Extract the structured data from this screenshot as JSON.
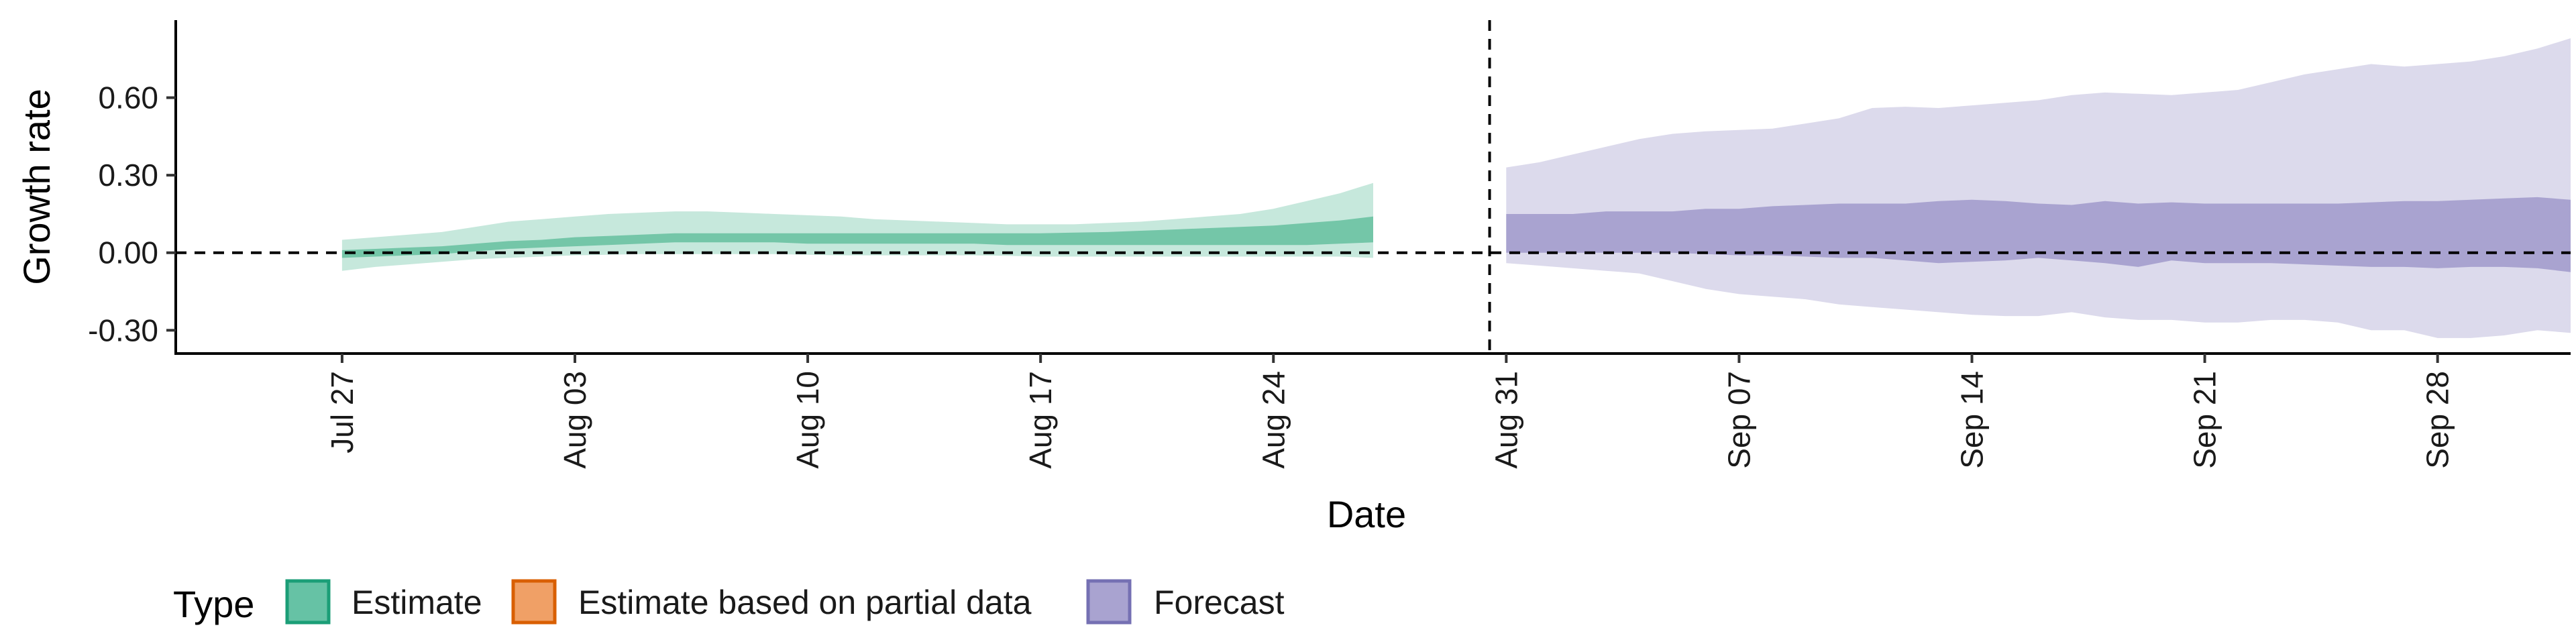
{
  "chart_data": {
    "type": "area",
    "xlabel": "Date",
    "ylabel": "Growth rate",
    "ylim": [
      -0.39,
      0.9
    ],
    "xlim": [
      "2020-07-22",
      "2020-10-02"
    ],
    "y_ticks": [
      -0.3,
      0.0,
      0.3,
      0.6
    ],
    "y_tick_labels": [
      "-0.30",
      "0.00",
      "0.30",
      "0.60"
    ],
    "x_ticks": [
      "2020-07-27",
      "2020-08-03",
      "2020-08-10",
      "2020-08-17",
      "2020-08-24",
      "2020-08-31",
      "2020-09-07",
      "2020-09-14",
      "2020-09-21",
      "2020-09-28"
    ],
    "x_tick_labels": [
      "Jul 27",
      "Aug 03",
      "Aug 10",
      "Aug 17",
      "Aug 24",
      "Aug 31",
      "Sep 07",
      "Sep 14",
      "Sep 21",
      "Sep 28"
    ],
    "reference_lines": {
      "horizontal_y": 0,
      "vertical_date": "2020-08-30"
    },
    "grid": false,
    "legend": {
      "title": "Type",
      "position": "bottom-left",
      "entries": [
        {
          "label": "Estimate",
          "fill": "#66c2a5",
          "stroke": "#1b9e77"
        },
        {
          "label": "Estimate based on partial data",
          "fill": "#f0a066",
          "stroke": "#d95f02"
        },
        {
          "label": "Forecast",
          "fill": "#a9a3d0",
          "stroke": "#7570b3"
        }
      ]
    },
    "series": [
      {
        "name": "Estimate",
        "color": "#1b9e77",
        "start_date": "2020-07-27",
        "outer_upper": [
          0.05,
          0.06,
          0.07,
          0.08,
          0.1,
          0.12,
          0.13,
          0.14,
          0.15,
          0.155,
          0.16,
          0.16,
          0.155,
          0.15,
          0.145,
          0.14,
          0.13,
          0.125,
          0.12,
          0.115,
          0.11,
          0.11,
          0.11,
          0.115,
          0.12,
          0.13,
          0.14,
          0.15,
          0.17,
          0.2,
          0.23,
          0.27
        ],
        "inner_upper": [
          0.01,
          0.015,
          0.02,
          0.025,
          0.035,
          0.045,
          0.05,
          0.06,
          0.065,
          0.07,
          0.075,
          0.075,
          0.075,
          0.075,
          0.075,
          0.075,
          0.075,
          0.075,
          0.075,
          0.075,
          0.075,
          0.075,
          0.078,
          0.08,
          0.085,
          0.09,
          0.095,
          0.1,
          0.105,
          0.115,
          0.125,
          0.14
        ],
        "inner_lower": [
          -0.02,
          -0.015,
          -0.01,
          -0.005,
          0.005,
          0.015,
          0.02,
          0.025,
          0.03,
          0.035,
          0.04,
          0.04,
          0.04,
          0.04,
          0.035,
          0.035,
          0.035,
          0.035,
          0.035,
          0.035,
          0.03,
          0.03,
          0.03,
          0.03,
          0.03,
          0.03,
          0.03,
          0.03,
          0.03,
          0.03,
          0.035,
          0.04
        ],
        "outer_lower": [
          -0.07,
          -0.055,
          -0.045,
          -0.035,
          -0.025,
          -0.02,
          -0.015,
          -0.01,
          -0.008,
          -0.005,
          -0.005,
          -0.005,
          -0.005,
          -0.005,
          -0.008,
          -0.01,
          -0.01,
          -0.01,
          -0.01,
          -0.01,
          -0.012,
          -0.015,
          -0.015,
          -0.015,
          -0.015,
          -0.015,
          -0.015,
          -0.015,
          -0.015,
          -0.015,
          -0.015,
          -0.02
        ]
      },
      {
        "name": "Forecast",
        "color": "#7570b3",
        "start_date": "2020-08-31",
        "outer_upper": [
          0.33,
          0.35,
          0.38,
          0.41,
          0.44,
          0.46,
          0.47,
          0.475,
          0.48,
          0.5,
          0.52,
          0.56,
          0.565,
          0.56,
          0.57,
          0.58,
          0.59,
          0.61,
          0.62,
          0.615,
          0.61,
          0.62,
          0.63,
          0.66,
          0.69,
          0.71,
          0.73,
          0.72,
          0.73,
          0.74,
          0.76,
          0.79,
          0.83
        ],
        "inner_upper": [
          0.15,
          0.15,
          0.15,
          0.16,
          0.16,
          0.16,
          0.17,
          0.17,
          0.18,
          0.185,
          0.19,
          0.19,
          0.19,
          0.2,
          0.205,
          0.2,
          0.19,
          0.185,
          0.2,
          0.19,
          0.195,
          0.19,
          0.19,
          0.19,
          0.19,
          0.19,
          0.195,
          0.2,
          0.2,
          0.205,
          0.21,
          0.215,
          0.205
        ],
        "inner_lower": [
          0.0,
          0.0,
          0.0,
          0.0,
          0.0,
          0.0,
          -0.005,
          -0.01,
          -0.01,
          -0.015,
          -0.02,
          -0.02,
          -0.03,
          -0.04,
          -0.035,
          -0.03,
          -0.02,
          -0.03,
          -0.04,
          -0.055,
          -0.03,
          -0.04,
          -0.04,
          -0.04,
          -0.045,
          -0.05,
          -0.055,
          -0.055,
          -0.06,
          -0.055,
          -0.055,
          -0.06,
          -0.075
        ],
        "outer_lower": [
          -0.04,
          -0.05,
          -0.06,
          -0.07,
          -0.08,
          -0.11,
          -0.14,
          -0.16,
          -0.17,
          -0.18,
          -0.2,
          -0.21,
          -0.22,
          -0.23,
          -0.24,
          -0.245,
          -0.245,
          -0.23,
          -0.25,
          -0.26,
          -0.26,
          -0.27,
          -0.27,
          -0.26,
          -0.26,
          -0.27,
          -0.3,
          -0.3,
          -0.33,
          -0.33,
          -0.32,
          -0.3,
          -0.31
        ]
      }
    ]
  }
}
